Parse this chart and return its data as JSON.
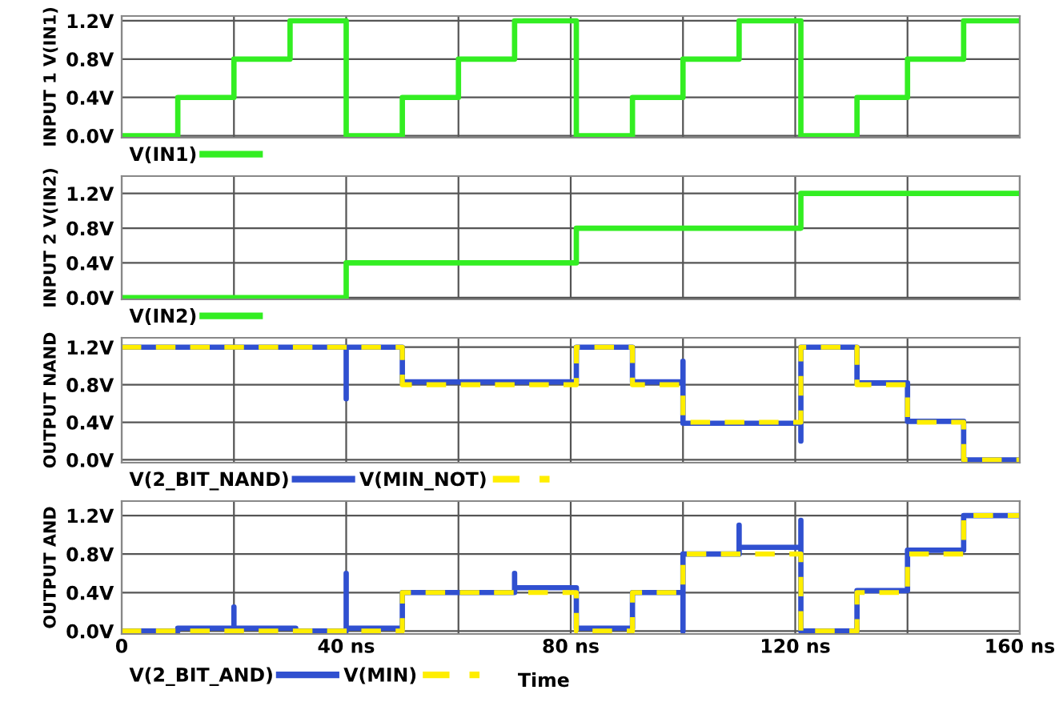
{
  "chart_data": [
    {
      "type": "line",
      "ylabel": "INPUT 1 V(IN1)",
      "xlim": [
        0,
        160
      ],
      "ylim": [
        -0.02,
        1.25
      ],
      "xticks": [
        {
          "value": 0,
          "label": null
        },
        {
          "value": 20,
          "label": null
        },
        {
          "value": 40,
          "label": null
        },
        {
          "value": 60,
          "label": null
        },
        {
          "value": 80,
          "label": null
        },
        {
          "value": 100,
          "label": null
        },
        {
          "value": 120,
          "label": null
        },
        {
          "value": 140,
          "label": null
        },
        {
          "value": 160,
          "label": null
        }
      ],
      "yticks": [
        {
          "value": 0,
          "label": "0.0V"
        },
        {
          "value": 0.4,
          "label": "0.4V"
        },
        {
          "value": 0.8,
          "label": "0.8V"
        },
        {
          "value": 1.2,
          "label": "1.2V"
        }
      ],
      "tick_labels": "y",
      "grid": true,
      "legend": "bottom left",
      "series": [
        {
          "name": "V(IN1)",
          "color": "#33ee22",
          "line_style": "solid",
          "x": [
            0,
            10,
            10,
            20,
            20,
            30,
            30,
            40,
            40,
            50,
            50,
            60,
            60,
            70,
            70,
            81,
            81,
            91,
            91,
            100,
            100,
            110,
            110,
            121,
            121,
            131,
            131,
            140,
            140,
            150,
            150,
            160
          ],
          "values": [
            0,
            0,
            0.4,
            0.4,
            0.8,
            0.8,
            1.2,
            1.2,
            0,
            0,
            0.4,
            0.4,
            0.8,
            0.8,
            1.2,
            1.2,
            0,
            0,
            0.4,
            0.4,
            0.8,
            0.8,
            1.2,
            1.2,
            0,
            0,
            0.4,
            0.4,
            0.8,
            0.8,
            1.2,
            1.2
          ]
        }
      ]
    },
    {
      "type": "line",
      "ylabel": "INPUT 2 V(IN2)",
      "xlim": [
        0,
        160
      ],
      "ylim": [
        -0.02,
        1.4
      ],
      "xticks": [
        {
          "value": 0,
          "label": null
        },
        {
          "value": 20,
          "label": null
        },
        {
          "value": 40,
          "label": null
        },
        {
          "value": 60,
          "label": null
        },
        {
          "value": 80,
          "label": null
        },
        {
          "value": 100,
          "label": null
        },
        {
          "value": 120,
          "label": null
        },
        {
          "value": 140,
          "label": null
        },
        {
          "value": 160,
          "label": null
        }
      ],
      "yticks": [
        {
          "value": 0,
          "label": "0.0V"
        },
        {
          "value": 0.4,
          "label": "0.4V"
        },
        {
          "value": 0.8,
          "label": "0.8V"
        },
        {
          "value": 1.2,
          "label": "1.2V"
        }
      ],
      "tick_labels": "y",
      "grid": true,
      "legend": "bottom left",
      "series": [
        {
          "name": "V(IN2)",
          "color": "#33ee22",
          "line_style": "solid",
          "x": [
            0,
            40,
            40,
            81,
            81,
            121,
            121,
            160
          ],
          "values": [
            0,
            0,
            0.4,
            0.4,
            0.8,
            0.8,
            1.2,
            1.2
          ]
        }
      ]
    },
    {
      "type": "line",
      "ylabel": "OUTPUT NAND",
      "xlim": [
        0,
        160
      ],
      "ylim": [
        -0.03,
        1.3
      ],
      "xticks": [
        {
          "value": 0,
          "label": null
        },
        {
          "value": 20,
          "label": null
        },
        {
          "value": 40,
          "label": null
        },
        {
          "value": 60,
          "label": null
        },
        {
          "value": 80,
          "label": null
        },
        {
          "value": 100,
          "label": null
        },
        {
          "value": 120,
          "label": null
        },
        {
          "value": 140,
          "label": null
        },
        {
          "value": 160,
          "label": null
        }
      ],
      "yticks": [
        {
          "value": 0,
          "label": "0.0V"
        },
        {
          "value": 0.4,
          "label": "0.4V"
        },
        {
          "value": 0.8,
          "label": "0.8V"
        },
        {
          "value": 1.2,
          "label": "1.2V"
        }
      ],
      "tick_labels": "y",
      "grid": true,
      "legend": "bottom left",
      "series": [
        {
          "name": "V(2_BIT_NAND)",
          "color": "#3050d0",
          "line_style": "solid",
          "x": [
            0,
            40,
            40,
            40,
            50,
            50,
            81,
            81,
            91,
            91,
            100,
            100,
            100,
            121,
            121,
            121,
            131,
            131,
            140,
            140,
            150,
            150,
            160
          ],
          "values": [
            1.2,
            1.2,
            0.65,
            1.2,
            1.2,
            0.83,
            0.83,
            1.2,
            1.2,
            0.83,
            0.83,
            1.05,
            0.39,
            0.39,
            0.2,
            1.2,
            1.2,
            0.82,
            0.82,
            0.41,
            0.41,
            0,
            0
          ]
        },
        {
          "name": "V(MIN_NOT)",
          "color": "#ffee00",
          "line_style": "dashed",
          "x": [
            0,
            50,
            50,
            81,
            81,
            91,
            91,
            100,
            100,
            121,
            121,
            131,
            131,
            140,
            140,
            150,
            150,
            160
          ],
          "values": [
            1.2,
            1.2,
            0.8,
            0.8,
            1.2,
            1.2,
            0.8,
            0.8,
            0.4,
            0.4,
            1.2,
            1.2,
            0.8,
            0.8,
            0.4,
            0.4,
            0,
            0
          ]
        }
      ]
    },
    {
      "type": "line",
      "ylabel": "OUTPUT AND",
      "xlabel": "Time",
      "xlim": [
        0,
        160
      ],
      "ylim": [
        -0.03,
        1.35
      ],
      "xticks": [
        0,
        {
          "value": 20,
          "label": null
        },
        {
          "value": 40,
          "label": "40 ns"
        },
        {
          "value": 60,
          "label": null
        },
        {
          "value": 80,
          "label": "80 ns"
        },
        {
          "value": 100,
          "label": null
        },
        {
          "value": 120,
          "label": "120 ns"
        },
        {
          "value": 140,
          "label": null
        },
        {
          "value": 160,
          "label": "160 ns"
        }
      ],
      "yticks": [
        {
          "value": 0,
          "label": "0.0V"
        },
        {
          "value": 0.4,
          "label": "0.4V"
        },
        {
          "value": 0.8,
          "label": "0.8V"
        },
        {
          "value": 1.2,
          "label": "1.2V"
        }
      ],
      "grid": true,
      "legend": "bottom left",
      "series": [
        {
          "name": "V(2_BIT_AND)",
          "color": "#3050d0",
          "line_style": "solid",
          "x": [
            0,
            10,
            10,
            20,
            20,
            20,
            31,
            31,
            40,
            40,
            40,
            50,
            50,
            70,
            70,
            70,
            81,
            81,
            91,
            91,
            100,
            100,
            100,
            110,
            110,
            110,
            121,
            121,
            121,
            131,
            131,
            140,
            140,
            150,
            150,
            160
          ],
          "values": [
            0,
            0,
            0.03,
            0.03,
            0.25,
            0.03,
            0.03,
            0,
            0,
            0.6,
            0.03,
            0.03,
            0.4,
            0.4,
            0.6,
            0.45,
            0.45,
            0.03,
            0.03,
            0.4,
            0.4,
            0,
            0.8,
            0.8,
            1.1,
            0.87,
            0.87,
            1.15,
            0,
            0,
            0.42,
            0.42,
            0.84,
            0.84,
            1.2,
            1.2
          ]
        },
        {
          "name": "V(MIN)",
          "color": "#ffee00",
          "line_style": "dashed",
          "x": [
            0,
            50,
            50,
            81,
            81,
            91,
            91,
            100,
            100,
            121,
            121,
            131,
            131,
            140,
            140,
            150,
            150,
            160
          ],
          "values": [
            0,
            0,
            0.4,
            0.4,
            0,
            0,
            0.4,
            0.4,
            0.8,
            0.8,
            0,
            0,
            0.4,
            0.4,
            0.8,
            0.8,
            1.2,
            1.2
          ]
        }
      ]
    }
  ]
}
